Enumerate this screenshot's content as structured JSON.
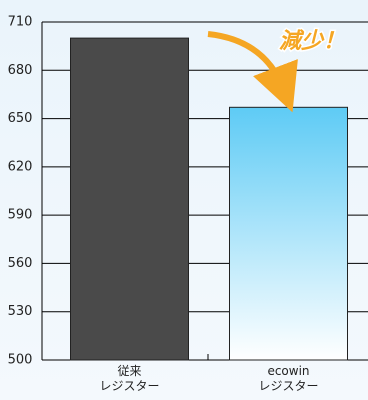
{
  "chart_data": {
    "type": "bar",
    "categories": [
      "従来\nレジスター",
      "ecowin\nレジスター"
    ],
    "values": [
      700,
      657
    ],
    "colors": [
      "#4a4a4a",
      "#5ecbf5"
    ],
    "gradient": [
      false,
      true
    ],
    "ylim": [
      500,
      710
    ],
    "yticks": [
      500,
      530,
      560,
      590,
      620,
      650,
      680,
      710
    ],
    "grid": true,
    "annotation": "減少！"
  }
}
